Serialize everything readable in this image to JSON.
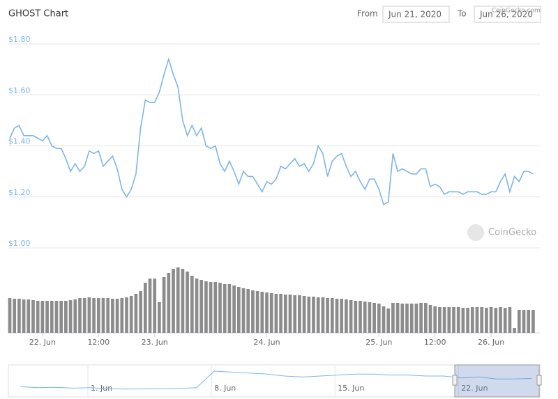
{
  "controls": {
    "from_label": "From",
    "from": "Jun 21, 2020",
    "to_label": "To",
    "to": "Jun 26, 2020",
    "credit": "CoinGecko.com",
    "watermark": "CoinGecko"
  },
  "chart_data": {
    "type": "line",
    "title": "GHOST Chart",
    "categories": [
      null,
      null,
      null,
      null,
      null,
      null,
      null,
      "22. Jun",
      null,
      null,
      null,
      null,
      null,
      null,
      null,
      null,
      null,
      null,
      null,
      "12:00",
      null,
      null,
      null,
      null,
      null,
      null,
      null,
      null,
      null,
      null,
      null,
      "23. Jun",
      null,
      null,
      null,
      null,
      null,
      null,
      null,
      null,
      null,
      null,
      null,
      null,
      null,
      null,
      null,
      null,
      null,
      null,
      null,
      null,
      null,
      null,
      null,
      "24. Jun",
      null,
      null,
      null,
      null,
      null,
      null,
      null,
      null,
      null,
      null,
      null,
      null,
      null,
      null,
      null,
      null,
      null,
      null,
      null,
      null,
      null,
      null,
      null,
      "25. Jun",
      null,
      null,
      null,
      null,
      null,
      null,
      null,
      null,
      null,
      null,
      null,
      "12:00",
      null,
      null,
      null,
      null,
      null,
      null,
      null,
      null,
      null,
      null,
      null,
      "26. Jun",
      null,
      null,
      null,
      null,
      null,
      null,
      null,
      null,
      null
    ],
    "series": [
      {
        "color": "#7cb5ec",
        "values": [
          1.43,
          1.47,
          1.48,
          1.44,
          1.44,
          1.44,
          1.43,
          1.42,
          1.44,
          1.4,
          1.39,
          1.39,
          1.35,
          1.3,
          1.33,
          1.3,
          1.32,
          1.38,
          1.37,
          1.38,
          1.32,
          1.34,
          1.36,
          1.31,
          1.23,
          1.2,
          1.23,
          1.29,
          1.47,
          1.58,
          1.57,
          1.57,
          1.61,
          1.68,
          1.74,
          1.68,
          1.63,
          1.5,
          1.44,
          1.48,
          1.44,
          1.47,
          1.4,
          1.39,
          1.4,
          1.33,
          1.3,
          1.34,
          1.3,
          1.25,
          1.3,
          1.28,
          1.28,
          1.25,
          1.22,
          1.26,
          1.25,
          1.27,
          1.32,
          1.31,
          1.33,
          1.35,
          1.32,
          1.33,
          1.3,
          1.33,
          1.4,
          1.37,
          1.28,
          1.34,
          1.36,
          1.37,
          1.32,
          1.28,
          1.3,
          1.26,
          1.23,
          1.27,
          1.27,
          1.23,
          1.17,
          1.18,
          1.37,
          1.3,
          1.31,
          1.3,
          1.29,
          1.29,
          1.31,
          1.31,
          1.24,
          1.25,
          1.24,
          1.21,
          1.22,
          1.22,
          1.22,
          1.21,
          1.22,
          1.22,
          1.22,
          1.21,
          1.21,
          1.22,
          1.22,
          1.26,
          1.29,
          1.22,
          1.28,
          1.26,
          1.3,
          1.3,
          1.29
        ]
      },
      {
        "type": "bar",
        "axis": "y2",
        "color": "#8c8c8c",
        "values": [
          50,
          49,
          49,
          48,
          48,
          47,
          46,
          46,
          46,
          46,
          46,
          46,
          46,
          47,
          48,
          50,
          50,
          51,
          50,
          50,
          50,
          50,
          49,
          49,
          50,
          51,
          53,
          56,
          60,
          72,
          78,
          78,
          44,
          80,
          86,
          92,
          94,
          92,
          88,
          82,
          78,
          76,
          74,
          73,
          73,
          72,
          70,
          70,
          68,
          66,
          64,
          63,
          61,
          60,
          59,
          58,
          57,
          56,
          56,
          55,
          55,
          54,
          54,
          53,
          52,
          52,
          51,
          51,
          50,
          50,
          49,
          49,
          48,
          47,
          46,
          46,
          45,
          44,
          43,
          42,
          38,
          35,
          43,
          43,
          42,
          42,
          42,
          42,
          43,
          43,
          40,
          38,
          37,
          37,
          37,
          37,
          37,
          36,
          36,
          37,
          37,
          37,
          36,
          37,
          36,
          37,
          36,
          37,
          7,
          33,
          33,
          33,
          33
        ]
      }
    ],
    "ylim": [
      1.0,
      1.8
    ],
    "yticks": [
      {
        "value": 1.0,
        "label": "$1.00"
      },
      {
        "value": 1.2,
        "label": "$1.20"
      },
      {
        "value": 1.4,
        "label": "$1.40"
      },
      {
        "value": 1.6,
        "label": "$1.60"
      },
      {
        "value": 1.8,
        "label": "$1.80"
      }
    ],
    "y2lim": [
      0,
      120
    ],
    "grid": true,
    "navigator": {
      "categories": [
        null,
        null,
        null,
        null,
        "1. Jun",
        null,
        null,
        null,
        null,
        null,
        null,
        "8. Jun",
        null,
        null,
        null,
        null,
        null,
        null,
        "15. Jun",
        null,
        null,
        null,
        null,
        null,
        null,
        "22. Jun",
        null,
        null,
        null,
        null
      ],
      "values": [
        0.95,
        0.9,
        0.92,
        0.88,
        0.9,
        0.85,
        0.83,
        0.84,
        0.85,
        0.86,
        0.9,
        1.75,
        1.7,
        1.65,
        1.6,
        1.5,
        1.45,
        1.5,
        1.55,
        1.6,
        1.6,
        1.55,
        1.55,
        1.5,
        1.5,
        1.4,
        1.45,
        1.35,
        1.35,
        1.38
      ],
      "ylim": [
        0.5,
        2.0
      ],
      "color": "#7cb5ec"
    }
  }
}
